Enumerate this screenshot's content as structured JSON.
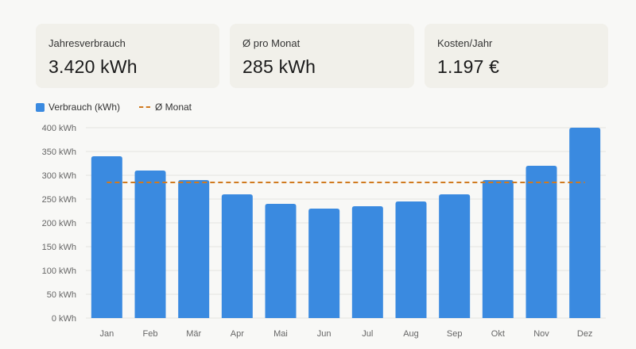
{
  "stats": [
    {
      "label": "Jahresverbrauch",
      "value": "3.420 kWh"
    },
    {
      "label": "Ø pro Monat",
      "value": "285 kWh"
    },
    {
      "label": "Kosten/Jahr",
      "value": "1.197 €"
    }
  ],
  "colors": {
    "bar": "#3a8ae0",
    "avg_line": "#d07a1f",
    "grid": "#e4e4e0",
    "card": "#f1f0ea"
  },
  "chart_data": {
    "type": "bar",
    "categories": [
      "Jan",
      "Feb",
      "Mär",
      "Apr",
      "Mai",
      "Jun",
      "Jul",
      "Aug",
      "Sep",
      "Okt",
      "Nov",
      "Dez"
    ],
    "series": [
      {
        "name": "Verbrauch (kWh)",
        "values": [
          340,
          310,
          290,
          260,
          240,
          230,
          235,
          245,
          260,
          290,
          320,
          400
        ]
      }
    ],
    "reference_line": {
      "name": "Ø Monat",
      "value": 285,
      "style": "dashed"
    },
    "yticks": [
      "0 kWh",
      "50 kWh",
      "100 kWh",
      "150 kWh",
      "200 kWh",
      "250 kWh",
      "300 kWh",
      "350 kWh",
      "400 kWh"
    ],
    "ylim": [
      0,
      400
    ],
    "legend_position": "top-left",
    "grid": true
  }
}
